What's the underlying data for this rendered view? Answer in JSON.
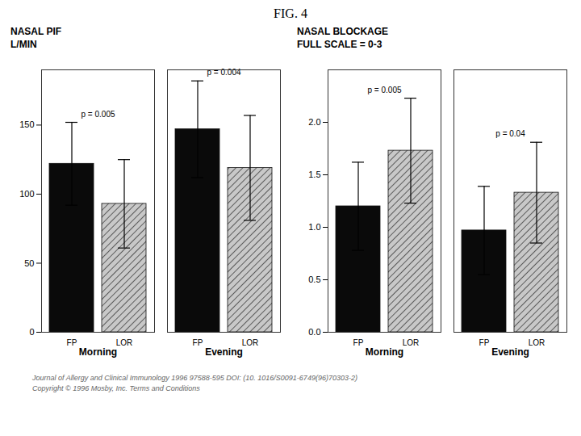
{
  "title": "FIG. 4",
  "annotations": [
    "Journal of Allergy and Clinical Immunology 1996 97588-595 DOI: (10. 1016/S0091-6749(96)70303-2)",
    "Copyright © 1996 Mosby, Inc.   Terms and Conditions"
  ],
  "chart_data": [
    {
      "type": "bar",
      "title": "NASAL PIF\nL/MIN",
      "categories": [
        "Morning",
        "Evening"
      ],
      "series": [
        {
          "name": "FP",
          "color": "#0a0a0a",
          "values": [
            122,
            147
          ],
          "errors": [
            30,
            35
          ]
        },
        {
          "name": "LOR",
          "color": "#c8c8c8",
          "values": [
            93,
            119
          ],
          "errors": [
            32,
            38
          ]
        }
      ],
      "ylim": [
        0,
        190
      ],
      "yticks": [
        0,
        50,
        100,
        150
      ],
      "annotations": [
        {
          "text": "p = 0.005",
          "category": "Morning"
        },
        {
          "text": "p = 0.004",
          "category": "Evening"
        }
      ]
    },
    {
      "type": "bar",
      "title": "NASAL BLOCKAGE\nFULL SCALE = 0-3",
      "categories": [
        "Morning",
        "Evening"
      ],
      "series": [
        {
          "name": "FP",
          "color": "#0a0a0a",
          "values": [
            1.2,
            0.97
          ],
          "errors": [
            0.42,
            0.42
          ]
        },
        {
          "name": "LOR",
          "color": "#c8c8c8",
          "values": [
            1.73,
            1.33
          ],
          "errors": [
            0.5,
            0.48
          ]
        }
      ],
      "ylim": [
        0,
        2.5
      ],
      "yticks": [
        {
          "value": 0,
          "label": "0.0"
        },
        0.5,
        {
          "value": 1.0,
          "label": "1.0"
        },
        1.5,
        {
          "value": 2.0,
          "label": "2.0"
        }
      ],
      "annotations": [
        {
          "text": "p = 0.005",
          "category": "Morning"
        },
        {
          "text": "p = 0.04",
          "category": "Evening"
        }
      ]
    }
  ]
}
